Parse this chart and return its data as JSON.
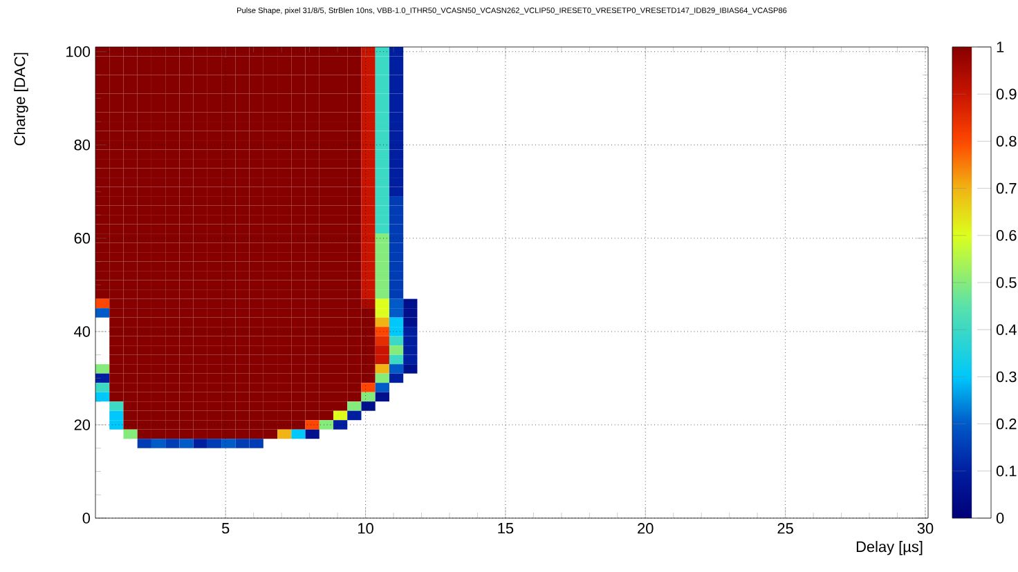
{
  "chart_data": {
    "type": "heatmap",
    "title": "Pulse Shape, pixel 31/8/5, StrBlen 10ns, VBB-1.0_ITHR50_VCASN50_VCASN262_VCLIP50_IRESET0_VRESETP0_VRESETD147_IDB29_IBIAS64_VCASP86",
    "xlabel": "Delay [µs]",
    "ylabel": "Charge [DAC]",
    "x": [
      0.6,
      1.1,
      1.6,
      2.1,
      2.6,
      3.1,
      3.6,
      4.1,
      4.6,
      5.1,
      5.6,
      6.1,
      6.6,
      7.1,
      7.6,
      8.1,
      8.6,
      9.1,
      9.6,
      10.1,
      10.6,
      11.1,
      11.6,
      12.1
    ],
    "y": [
      100,
      98,
      96,
      94,
      92,
      90,
      88,
      86,
      84,
      82,
      80,
      78,
      76,
      74,
      72,
      70,
      68,
      66,
      64,
      62,
      60,
      58,
      56,
      54,
      52,
      50,
      48,
      46,
      44,
      42,
      40,
      38,
      36,
      34,
      32,
      30,
      28,
      26,
      24,
      22,
      20,
      18,
      16
    ],
    "cells": [
      [
        1,
        1,
        1,
        1,
        1,
        1,
        1,
        1,
        1,
        1,
        1,
        1,
        1,
        1,
        1,
        1,
        1,
        1,
        1,
        0.9,
        0.4,
        0.1,
        null,
        null
      ],
      [
        1,
        1,
        1,
        1,
        1,
        1,
        1,
        1,
        1,
        1,
        1,
        1,
        1,
        1,
        1,
        1,
        1,
        1,
        1,
        0.9,
        0.4,
        0.1,
        null,
        null
      ],
      [
        1,
        1,
        1,
        1,
        1,
        1,
        1,
        1,
        1,
        1,
        1,
        1,
        1,
        1,
        1,
        1,
        1,
        1,
        1,
        0.9,
        0.4,
        0.1,
        null,
        null
      ],
      [
        1,
        1,
        1,
        1,
        1,
        1,
        1,
        1,
        1,
        1,
        1,
        1,
        1,
        1,
        1,
        1,
        1,
        1,
        1,
        0.9,
        0.4,
        0.1,
        null,
        null
      ],
      [
        1,
        1,
        1,
        1,
        1,
        1,
        1,
        1,
        1,
        1,
        1,
        1,
        1,
        1,
        1,
        1,
        1,
        1,
        1,
        0.9,
        0.4,
        0.1,
        null,
        null
      ],
      [
        1,
        1,
        1,
        1,
        1,
        1,
        1,
        1,
        1,
        1,
        1,
        1,
        1,
        1,
        1,
        1,
        1,
        1,
        1,
        0.9,
        0.4,
        0.1,
        null,
        null
      ],
      [
        1,
        1,
        1,
        1,
        1,
        1,
        1,
        1,
        1,
        1,
        1,
        1,
        1,
        1,
        1,
        1,
        1,
        1,
        1,
        0.9,
        0.4,
        0.1,
        null,
        null
      ],
      [
        1,
        1,
        1,
        1,
        1,
        1,
        1,
        1,
        1,
        1,
        1,
        1,
        1,
        1,
        1,
        1,
        1,
        1,
        1,
        0.9,
        0.4,
        0.1,
        null,
        null
      ],
      [
        1,
        1,
        1,
        1,
        1,
        1,
        1,
        1,
        1,
        1,
        1,
        1,
        1,
        1,
        1,
        1,
        1,
        1,
        1,
        0.9,
        0.4,
        0.1,
        null,
        null
      ],
      [
        1,
        1,
        1,
        1,
        1,
        1,
        1,
        1,
        1,
        1,
        1,
        1,
        1,
        1,
        1,
        1,
        1,
        1,
        1,
        0.9,
        0.4,
        0.1,
        null,
        null
      ],
      [
        1,
        1,
        1,
        1,
        1,
        1,
        1,
        1,
        1,
        1,
        1,
        1,
        1,
        1,
        1,
        1,
        1,
        1,
        1,
        0.9,
        0.4,
        0.1,
        null,
        null
      ],
      [
        1,
        1,
        1,
        1,
        1,
        1,
        1,
        1,
        1,
        1,
        1,
        1,
        1,
        1,
        1,
        1,
        1,
        1,
        1,
        0.9,
        0.4,
        0.1,
        null,
        null
      ],
      [
        1,
        1,
        1,
        1,
        1,
        1,
        1,
        1,
        1,
        1,
        1,
        1,
        1,
        1,
        1,
        1,
        1,
        1,
        1,
        0.9,
        0.4,
        0.1,
        null,
        null
      ],
      [
        1,
        1,
        1,
        1,
        1,
        1,
        1,
        1,
        1,
        1,
        1,
        1,
        1,
        1,
        1,
        1,
        1,
        1,
        1,
        0.9,
        0.4,
        0.1,
        null,
        null
      ],
      [
        1,
        1,
        1,
        1,
        1,
        1,
        1,
        1,
        1,
        1,
        1,
        1,
        1,
        1,
        1,
        1,
        1,
        1,
        1,
        0.9,
        0.4,
        0.1,
        null,
        null
      ],
      [
        1,
        1,
        1,
        1,
        1,
        1,
        1,
        1,
        1,
        1,
        1,
        1,
        1,
        1,
        1,
        1,
        1,
        1,
        1,
        0.9,
        0.4,
        0.1,
        null,
        null
      ],
      [
        1,
        1,
        1,
        1,
        1,
        1,
        1,
        1,
        1,
        1,
        1,
        1,
        1,
        1,
        1,
        1,
        1,
        1,
        1,
        0.9,
        0.4,
        0.15,
        null,
        null
      ],
      [
        1,
        1,
        1,
        1,
        1,
        1,
        1,
        1,
        1,
        1,
        1,
        1,
        1,
        1,
        1,
        1,
        1,
        1,
        1,
        0.9,
        0.4,
        0.15,
        null,
        null
      ],
      [
        1,
        1,
        1,
        1,
        1,
        1,
        1,
        1,
        1,
        1,
        1,
        1,
        1,
        1,
        1,
        1,
        1,
        1,
        1,
        0.9,
        0.4,
        0.15,
        null,
        null
      ],
      [
        1,
        1,
        1,
        1,
        1,
        1,
        1,
        1,
        1,
        1,
        1,
        1,
        1,
        1,
        1,
        1,
        1,
        1,
        1,
        0.9,
        0.4,
        0.15,
        null,
        null
      ],
      [
        1,
        1,
        1,
        1,
        1,
        1,
        1,
        1,
        1,
        1,
        1,
        1,
        1,
        1,
        1,
        1,
        1,
        1,
        1,
        0.9,
        0.5,
        0.15,
        null,
        null
      ],
      [
        1,
        1,
        1,
        1,
        1,
        1,
        1,
        1,
        1,
        1,
        1,
        1,
        1,
        1,
        1,
        1,
        1,
        1,
        1,
        0.9,
        0.5,
        0.15,
        null,
        null
      ],
      [
        1,
        1,
        1,
        1,
        1,
        1,
        1,
        1,
        1,
        1,
        1,
        1,
        1,
        1,
        1,
        1,
        1,
        1,
        1,
        0.9,
        0.5,
        0.15,
        null,
        null
      ],
      [
        1,
        1,
        1,
        1,
        1,
        1,
        1,
        1,
        1,
        1,
        1,
        1,
        1,
        1,
        1,
        1,
        1,
        1,
        1,
        0.9,
        0.5,
        0.15,
        null,
        null
      ],
      [
        1,
        1,
        1,
        1,
        1,
        1,
        1,
        1,
        1,
        1,
        1,
        1,
        1,
        1,
        1,
        1,
        1,
        1,
        1,
        0.9,
        0.5,
        0.15,
        null,
        null
      ],
      [
        1,
        1,
        1,
        1,
        1,
        1,
        1,
        1,
        1,
        1,
        1,
        1,
        1,
        1,
        1,
        1,
        1,
        1,
        1,
        0.9,
        0.5,
        0.15,
        null,
        null
      ],
      [
        1,
        1,
        1,
        1,
        1,
        1,
        1,
        1,
        1,
        1,
        1,
        1,
        1,
        1,
        1,
        1,
        1,
        1,
        1,
        0.9,
        0.5,
        0.15,
        null,
        null
      ],
      [
        0.8,
        1,
        1,
        1,
        1,
        1,
        1,
        1,
        1,
        1,
        1,
        1,
        1,
        1,
        1,
        1,
        1,
        1,
        1,
        0.95,
        0.6,
        0.2,
        0.05,
        null
      ],
      [
        0.2,
        1,
        1,
        1,
        1,
        1,
        1,
        1,
        1,
        1,
        1,
        1,
        1,
        1,
        1,
        1,
        1,
        1,
        1,
        1,
        0.6,
        0.2,
        0.05,
        null
      ],
      [
        null,
        1,
        1,
        1,
        1,
        1,
        1,
        1,
        1,
        1,
        1,
        1,
        1,
        1,
        1,
        1,
        1,
        1,
        1,
        1,
        0.7,
        0.3,
        0.05,
        null
      ],
      [
        null,
        1,
        1,
        1,
        1,
        1,
        1,
        1,
        1,
        1,
        1,
        1,
        1,
        1,
        1,
        1,
        1,
        1,
        1,
        1,
        0.8,
        0.3,
        0.1,
        null
      ],
      [
        null,
        1,
        1,
        1,
        1,
        1,
        1,
        1,
        1,
        1,
        1,
        1,
        1,
        1,
        1,
        1,
        1,
        1,
        1,
        1,
        0.85,
        0.4,
        0.1,
        null
      ],
      [
        null,
        1,
        1,
        1,
        1,
        1,
        1,
        1,
        1,
        1,
        1,
        1,
        1,
        1,
        1,
        1,
        1,
        1,
        1,
        1,
        0.9,
        0.5,
        0.1,
        null
      ],
      [
        null,
        1,
        1,
        1,
        1,
        1,
        1,
        1,
        1,
        1,
        1,
        1,
        1,
        1,
        1,
        1,
        1,
        1,
        1,
        1,
        0.9,
        0.4,
        0.1,
        null
      ],
      [
        0.5,
        1,
        1,
        1,
        1,
        1,
        1,
        1,
        1,
        1,
        1,
        1,
        1,
        1,
        1,
        1,
        1,
        1,
        1,
        1,
        0.7,
        0.2,
        0.05,
        null
      ],
      [
        0.1,
        1,
        1,
        1,
        1,
        1,
        1,
        1,
        1,
        1,
        1,
        1,
        1,
        1,
        1,
        1,
        1,
        1,
        1,
        1,
        0.5,
        0.1,
        null,
        null
      ],
      [
        0.4,
        1,
        1,
        1,
        1,
        1,
        1,
        1,
        1,
        1,
        1,
        1,
        1,
        1,
        1,
        1,
        1,
        1,
        1,
        0.8,
        0.2,
        null,
        null,
        null
      ],
      [
        0.3,
        1,
        1,
        1,
        1,
        1,
        1,
        1,
        1,
        1,
        1,
        1,
        1,
        1,
        1,
        1,
        1,
        1,
        1,
        0.5,
        0.05,
        null,
        null,
        null
      ],
      [
        null,
        0.4,
        1,
        1,
        1,
        1,
        1,
        1,
        1,
        1,
        1,
        1,
        1,
        1,
        1,
        1,
        1,
        1,
        0.5,
        0.05,
        null,
        null,
        null,
        null
      ],
      [
        null,
        0.3,
        1,
        1,
        1,
        1,
        1,
        1,
        1,
        1,
        1,
        1,
        1,
        1,
        1,
        1,
        1,
        0.6,
        0.1,
        null,
        null,
        null,
        null,
        null
      ],
      [
        null,
        0.3,
        1,
        1,
        1,
        1,
        1,
        1,
        1,
        1,
        1,
        1,
        1,
        1,
        1,
        0.8,
        0.5,
        0.1,
        null,
        null,
        null,
        null,
        null,
        null
      ],
      [
        null,
        null,
        0.5,
        1,
        1,
        1,
        1,
        1,
        1,
        1,
        1,
        1,
        1,
        0.7,
        0.3,
        0.05,
        null,
        null,
        null,
        null,
        null,
        null,
        null,
        null
      ],
      [
        null,
        null,
        null,
        0.15,
        0.2,
        0.15,
        0.2,
        0.1,
        0.15,
        0.2,
        0.15,
        0.15,
        null,
        null,
        null,
        null,
        null,
        null,
        null,
        null,
        null,
        null,
        null,
        null
      ]
    ],
    "xlim": [
      0.35,
      30.1
    ],
    "ylim": [
      0,
      101
    ],
    "xticks": [
      5,
      10,
      15,
      20,
      25,
      30
    ],
    "yticks": [
      0,
      20,
      40,
      60,
      80,
      100
    ],
    "clim": [
      0,
      1
    ],
    "cticks": [
      0,
      0.1,
      0.2,
      0.3,
      0.4,
      0.5,
      0.6,
      0.7,
      0.8,
      0.9,
      1
    ],
    "grid": true
  }
}
